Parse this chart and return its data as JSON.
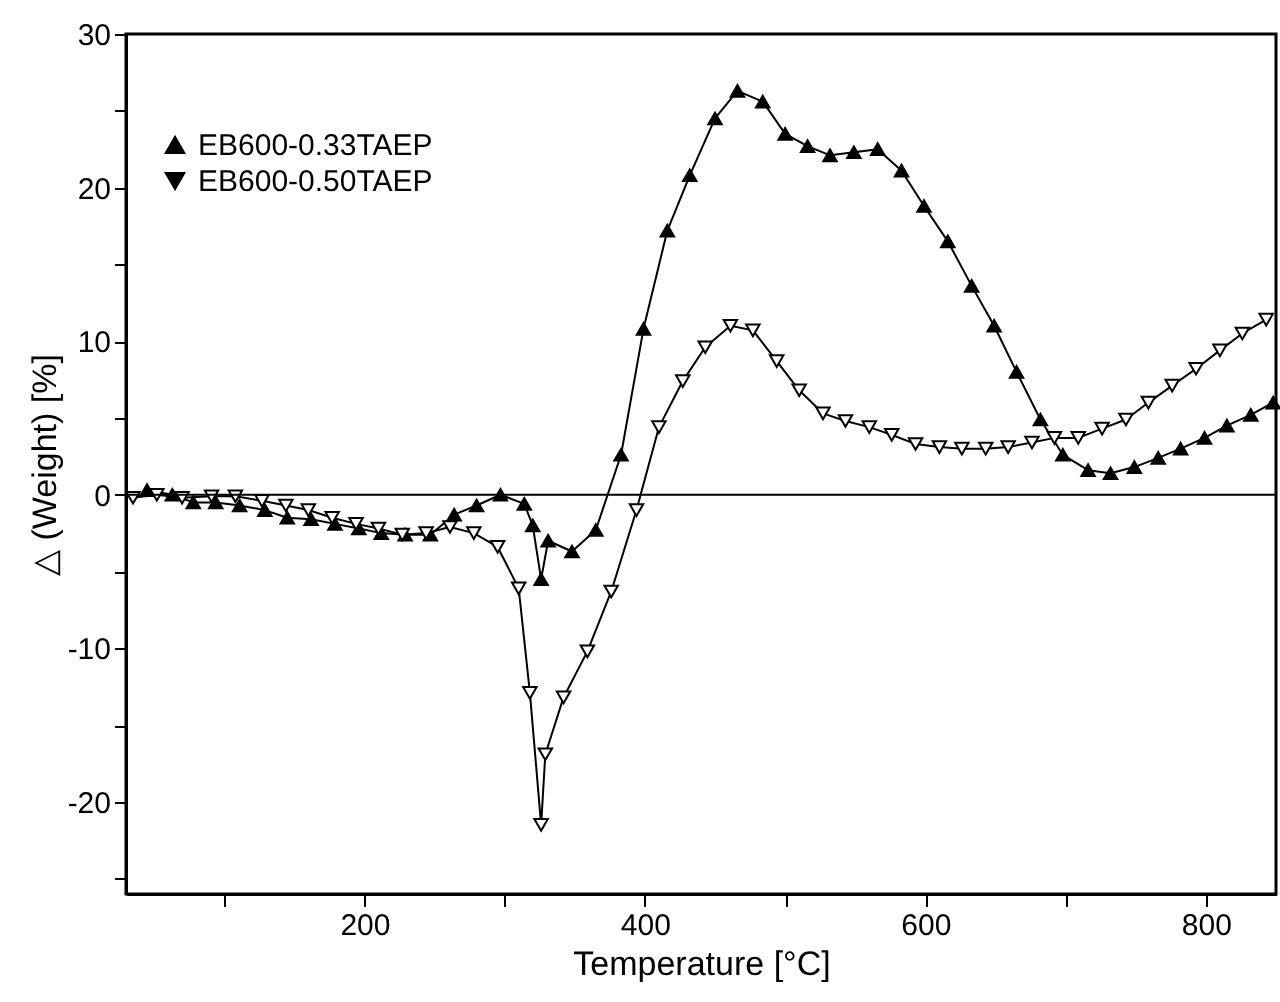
{
  "chart_data": {
    "type": "line",
    "xlabel": "Temperature [°C]",
    "ylabel": "△ (Weight) [%]",
    "xlim": [
      30,
      850
    ],
    "ylim": [
      -26,
      30
    ],
    "xticks": [
      {
        "value": 100,
        "label": null
      },
      200,
      {
        "value": 300,
        "label": null
      },
      400,
      {
        "value": 500,
        "label": null
      },
      600,
      {
        "value": 700,
        "label": null
      },
      800
    ],
    "yticks": [
      {
        "value": -25,
        "label": null
      },
      -20,
      {
        "value": -15,
        "label": null
      },
      -10,
      {
        "value": -5,
        "label": null
      },
      0,
      {
        "value": 5,
        "label": null
      },
      10,
      {
        "value": 15,
        "label": null
      },
      20,
      {
        "value": 25,
        "label": null
      },
      30
    ],
    "grid": false,
    "legend": "top left",
    "line_style": "solid",
    "ref_lines": [
      {
        "axis": "y",
        "value": 0,
        "color": "#000000"
      }
    ],
    "series": [
      {
        "name": "EB600-0.33TAEP",
        "color": "#000000",
        "marker": "triangle",
        "x": [
          45,
          63,
          78,
          94,
          111,
          129,
          145,
          162,
          179,
          196,
          212,
          229,
          247,
          264,
          280,
          297,
          314,
          320,
          326,
          331,
          348,
          365,
          383,
          399,
          416,
          432,
          450,
          466,
          484,
          500,
          516,
          532,
          549,
          566,
          583,
          599,
          616,
          633,
          649,
          665,
          682,
          698,
          716,
          732,
          749,
          766,
          782,
          799,
          815,
          832,
          848
        ],
        "values": [
          0.3,
          0,
          -0.5,
          -0.5,
          -0.7,
          -1,
          -1.5,
          -1.6,
          -1.9,
          -2.2,
          -2.5,
          -2.6,
          -2.6,
          -1.3,
          -0.7,
          0,
          -0.6,
          -2,
          -5.5,
          -3,
          -3.7,
          -2.3,
          2.6,
          10.8,
          17.2,
          20.8,
          24.5,
          26.3,
          25.6,
          23.5,
          22.7,
          22.1,
          22.3,
          22.5,
          21.1,
          18.8,
          16.5,
          13.6,
          11,
          8,
          4.9,
          2.6,
          1.6,
          1.4,
          1.8,
          2.4,
          3,
          3.7,
          4.5,
          5.2,
          6
        ]
      },
      {
        "name": "EB600-0.50TAEP",
        "color": "#000000",
        "marker": "triangle-down",
        "x": [
          35,
          52,
          70,
          91,
          108,
          127,
          144,
          160,
          177,
          194,
          210,
          227,
          244,
          261,
          278,
          295,
          310,
          318,
          326,
          329,
          342,
          359,
          376,
          394,
          410,
          427,
          443,
          461,
          477,
          494,
          510,
          527,
          543,
          560,
          576,
          593,
          610,
          626,
          643,
          659,
          676,
          692,
          709,
          726,
          743,
          759,
          776,
          793,
          810,
          826,
          843
        ],
        "values": [
          -0.2,
          0,
          -0.2,
          -0.1,
          -0.1,
          -0.4,
          -0.7,
          -1,
          -1.5,
          -1.9,
          -2.2,
          -2.6,
          -2.5,
          -2.1,
          -2.5,
          -3.4,
          -6.1,
          -12.9,
          -21.5,
          -16.9,
          -13.2,
          -10.2,
          -6.3,
          -1,
          4.4,
          7.4,
          9.6,
          11,
          10.7,
          8.7,
          6.8,
          5.3,
          4.8,
          4.4,
          3.9,
          3.3,
          3.1,
          3,
          3,
          3.1,
          3.4,
          3.7,
          3.7,
          4.3,
          4.9,
          6,
          7.1,
          8.2,
          9.4,
          10.5,
          11.4
        ]
      }
    ]
  }
}
